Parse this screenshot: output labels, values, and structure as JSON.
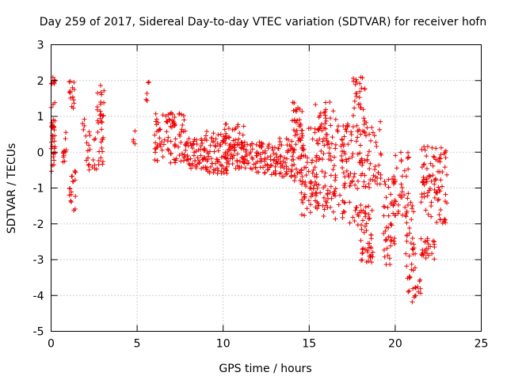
{
  "chart_data": {
    "type": "scatter",
    "title": "Day 259 of 2017, Sidereal Day-to-day VTEC variation (SDTVAR) for receiver hofn",
    "xlabel": "GPS time / hours",
    "ylabel": "SDTVAR / TECUs",
    "xlim": [
      0,
      25
    ],
    "ylim": [
      -5,
      3
    ],
    "xticks": [
      0,
      5,
      10,
      15,
      20,
      25
    ],
    "yticks": [
      3,
      2,
      1,
      0,
      -1,
      -2,
      -3,
      -4,
      -5
    ],
    "marker": "+",
    "color": "#ee0000",
    "grid": true,
    "clusters": [
      {
        "x": [
          0.0,
          0.25
        ],
        "y": [
          -0.6,
          2.1
        ],
        "density": 40
      },
      {
        "x": [
          0.6,
          0.9
        ],
        "y": [
          -0.3,
          0.8
        ],
        "density": 12
      },
      {
        "x": [
          1.05,
          1.35
        ],
        "y": [
          1.2,
          2.0
        ],
        "density": 14
      },
      {
        "x": [
          1.05,
          1.45
        ],
        "y": [
          -1.7,
          -0.5
        ],
        "density": 18
      },
      {
        "x": [
          1.8,
          1.95
        ],
        "y": [
          0.6,
          1.1
        ],
        "density": 4
      },
      {
        "x": [
          2.0,
          2.6
        ],
        "y": [
          -0.6,
          0.6
        ],
        "density": 18
      },
      {
        "x": [
          2.6,
          3.1
        ],
        "y": [
          -0.5,
          1.9
        ],
        "density": 35
      },
      {
        "x": [
          4.7,
          4.9
        ],
        "y": [
          0.2,
          0.8
        ],
        "density": 4
      },
      {
        "x": [
          5.5,
          5.7
        ],
        "y": [
          1.4,
          2.1
        ],
        "density": 5
      },
      {
        "x": [
          6.0,
          7.8
        ],
        "y": [
          -0.3,
          1.1
        ],
        "density": 90
      },
      {
        "x": [
          7.8,
          9.0
        ],
        "y": [
          -0.5,
          0.4
        ],
        "density": 60
      },
      {
        "x": [
          9.0,
          10.3
        ],
        "y": [
          -0.6,
          0.6
        ],
        "density": 70
      },
      {
        "x": [
          10.0,
          11.2
        ],
        "y": [
          -0.5,
          0.8
        ],
        "density": 70
      },
      {
        "x": [
          11.2,
          12.8
        ],
        "y": [
          -0.6,
          0.3
        ],
        "density": 70
      },
      {
        "x": [
          12.8,
          14.0
        ],
        "y": [
          -0.7,
          0.4
        ],
        "density": 60
      },
      {
        "x": [
          14.0,
          14.6
        ],
        "y": [
          -0.8,
          1.5
        ],
        "density": 50
      },
      {
        "x": [
          14.4,
          15.6
        ],
        "y": [
          -1.8,
          0.8
        ],
        "density": 80
      },
      {
        "x": [
          15.3,
          16.6
        ],
        "y": [
          -1.8,
          1.4
        ],
        "density": 90
      },
      {
        "x": [
          16.5,
          17.5
        ],
        "y": [
          -2.0,
          0.8
        ],
        "density": 60
      },
      {
        "x": [
          17.5,
          18.3
        ],
        "y": [
          -2.2,
          2.1
        ],
        "density": 70
      },
      {
        "x": [
          18.0,
          18.7
        ],
        "y": [
          -3.1,
          -1.5
        ],
        "density": 45
      },
      {
        "x": [
          18.2,
          19.2
        ],
        "y": [
          -1.0,
          0.9
        ],
        "density": 40
      },
      {
        "x": [
          19.3,
          20.0
        ],
        "y": [
          -3.2,
          -0.6
        ],
        "density": 50
      },
      {
        "x": [
          20.0,
          20.8
        ],
        "y": [
          -1.8,
          0.0
        ],
        "density": 35
      },
      {
        "x": [
          20.6,
          21.2
        ],
        "y": [
          -4.2,
          -1.2
        ],
        "density": 40
      },
      {
        "x": [
          21.3,
          21.5
        ],
        "y": [
          -4.0,
          -3.4
        ],
        "density": 6
      },
      {
        "x": [
          21.5,
          22.3
        ],
        "y": [
          -3.0,
          -2.4
        ],
        "density": 25
      },
      {
        "x": [
          21.5,
          23.0
        ],
        "y": [
          -2.0,
          0.2
        ],
        "density": 90
      }
    ]
  }
}
